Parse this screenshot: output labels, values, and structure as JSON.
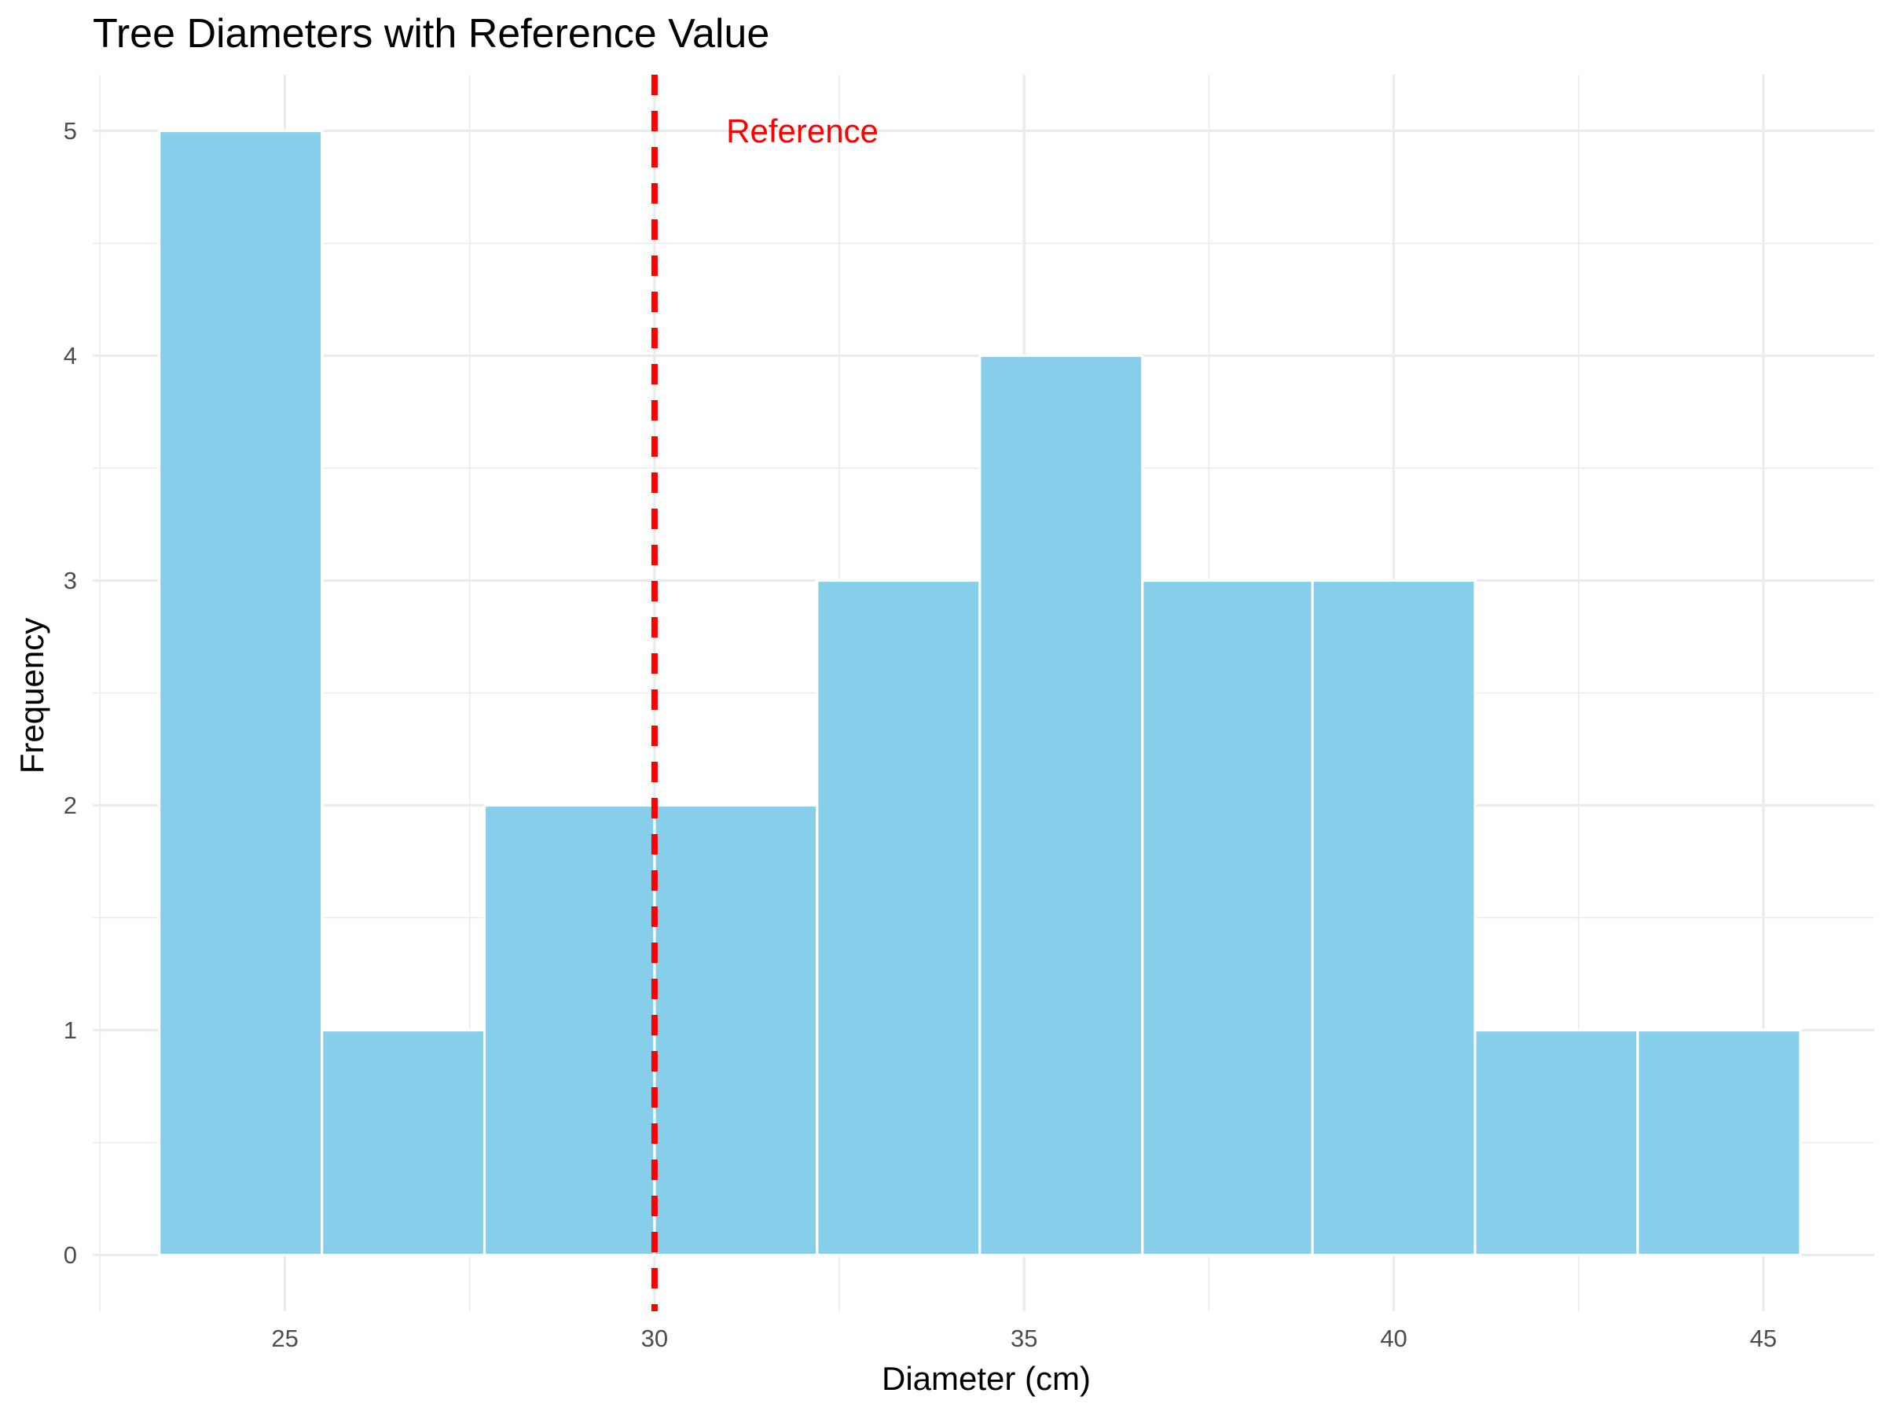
{
  "chart_data": {
    "type": "bar",
    "subtype": "histogram",
    "title": "Tree Diameters with Reference Value",
    "xlabel": "Diameter (cm)",
    "ylabel": "Frequency",
    "bins": [
      {
        "x0": 23.3,
        "x1": 25.5,
        "count": 5
      },
      {
        "x0": 25.5,
        "x1": 27.7,
        "count": 1
      },
      {
        "x0": 27.7,
        "x1": 30.0,
        "count": 2
      },
      {
        "x0": 30.0,
        "x1": 32.2,
        "count": 2
      },
      {
        "x0": 32.2,
        "x1": 34.4,
        "count": 3
      },
      {
        "x0": 34.4,
        "x1": 36.6,
        "count": 4
      },
      {
        "x0": 36.6,
        "x1": 38.9,
        "count": 3
      },
      {
        "x0": 38.9,
        "x1": 41.1,
        "count": 3
      },
      {
        "x0": 41.1,
        "x1": 43.3,
        "count": 1
      },
      {
        "x0": 43.3,
        "x1": 45.5,
        "count": 1
      }
    ],
    "xlim": [
      22.4,
      46.5
    ],
    "ylim": [
      -0.25,
      5.25
    ],
    "x_ticks": [
      25,
      30,
      35,
      40,
      45
    ],
    "y_ticks": [
      0,
      1,
      2,
      3,
      4,
      5
    ],
    "reference_line": {
      "x": 30,
      "label": "Reference",
      "color": "#ff0000",
      "style": "dashed"
    },
    "reference_label_position": {
      "x": 32,
      "y": 5
    },
    "bar_color": "#87ceeb",
    "grid": true,
    "legend": "none"
  }
}
